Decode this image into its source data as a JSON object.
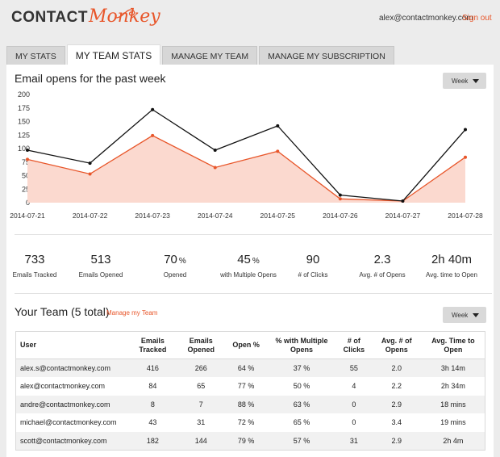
{
  "header": {
    "logo_part1": "CONTACT",
    "logo_part2": "Monkey",
    "user_email": "alex@contactmonkey.com",
    "sign_out": "Sign out"
  },
  "tabs": [
    {
      "label": "MY STATS"
    },
    {
      "label": "MY TEAM STATS"
    },
    {
      "label": "MANAGE MY TEAM"
    },
    {
      "label": "MANAGE MY SUBSCRIPTION"
    }
  ],
  "active_tab": "MY TEAM STATS",
  "colors": {
    "accent": "#e8562a",
    "line_total": "#111111",
    "fill_unique": "#fbd9cf"
  },
  "opens_section": {
    "title": "Email opens for the past week",
    "period_select": "Week"
  },
  "chart_data": {
    "type": "line",
    "title": "Email opens for the past week",
    "categories": [
      "2014-07-21",
      "2014-07-22",
      "2014-07-23",
      "2014-07-24",
      "2014-07-25",
      "2014-07-26",
      "2014-07-27",
      "2014-07-28"
    ],
    "series": [
      {
        "values": [
          97,
          73,
          172,
          97,
          142,
          14,
          3,
          135
        ],
        "color": "#111111"
      },
      {
        "values": [
          80,
          53,
          124,
          65,
          95,
          7,
          3,
          84
        ],
        "color": "#e8562a",
        "filled": true
      }
    ],
    "ylim": [
      0,
      200
    ],
    "yticks": [
      0,
      25,
      50,
      75,
      100,
      125,
      150,
      175,
      200
    ],
    "grid": false
  },
  "stats": [
    {
      "value": "733",
      "unit": "",
      "label": "Emails Tracked"
    },
    {
      "value": "513",
      "unit": "",
      "label": "Emails Opened"
    },
    {
      "value": "70",
      "unit": "%",
      "label": "Opened"
    },
    {
      "value": "45",
      "unit": "%",
      "label": "with Multiple Opens"
    },
    {
      "value": "90",
      "unit": "",
      "label": "# of Clicks"
    },
    {
      "value": "2.3",
      "unit": "",
      "label": "Avg. # of Opens"
    },
    {
      "value": "2h 40m",
      "unit": "",
      "label": "Avg. time to Open"
    }
  ],
  "team_section": {
    "title": "Your Team (5 total)",
    "manage_link": "Manage my Team",
    "period_select": "Week"
  },
  "team_table": {
    "headers": [
      "User",
      "Emails Tracked",
      "Emails Opened",
      "Open %",
      "% with Multiple Opens",
      "# of Clicks",
      "Avg. # of Opens",
      "Avg. Time to Open"
    ],
    "rows": [
      [
        "alex.s@contactmonkey.com",
        "416",
        "266",
        "64 %",
        "37 %",
        "55",
        "2.0",
        "3h 14m"
      ],
      [
        "alex@contactmonkey.com",
        "84",
        "65",
        "77 %",
        "50 %",
        "4",
        "2.2",
        "2h 34m"
      ],
      [
        "andre@contactmonkey.com",
        "8",
        "7",
        "88 %",
        "63 %",
        "0",
        "2.9",
        "18 mins"
      ],
      [
        "michael@contactmonkey.com",
        "43",
        "31",
        "72 %",
        "65 %",
        "0",
        "3.4",
        "19 mins"
      ],
      [
        "scott@contactmonkey.com",
        "182",
        "144",
        "79 %",
        "57 %",
        "31",
        "2.9",
        "2h 4m"
      ]
    ]
  }
}
